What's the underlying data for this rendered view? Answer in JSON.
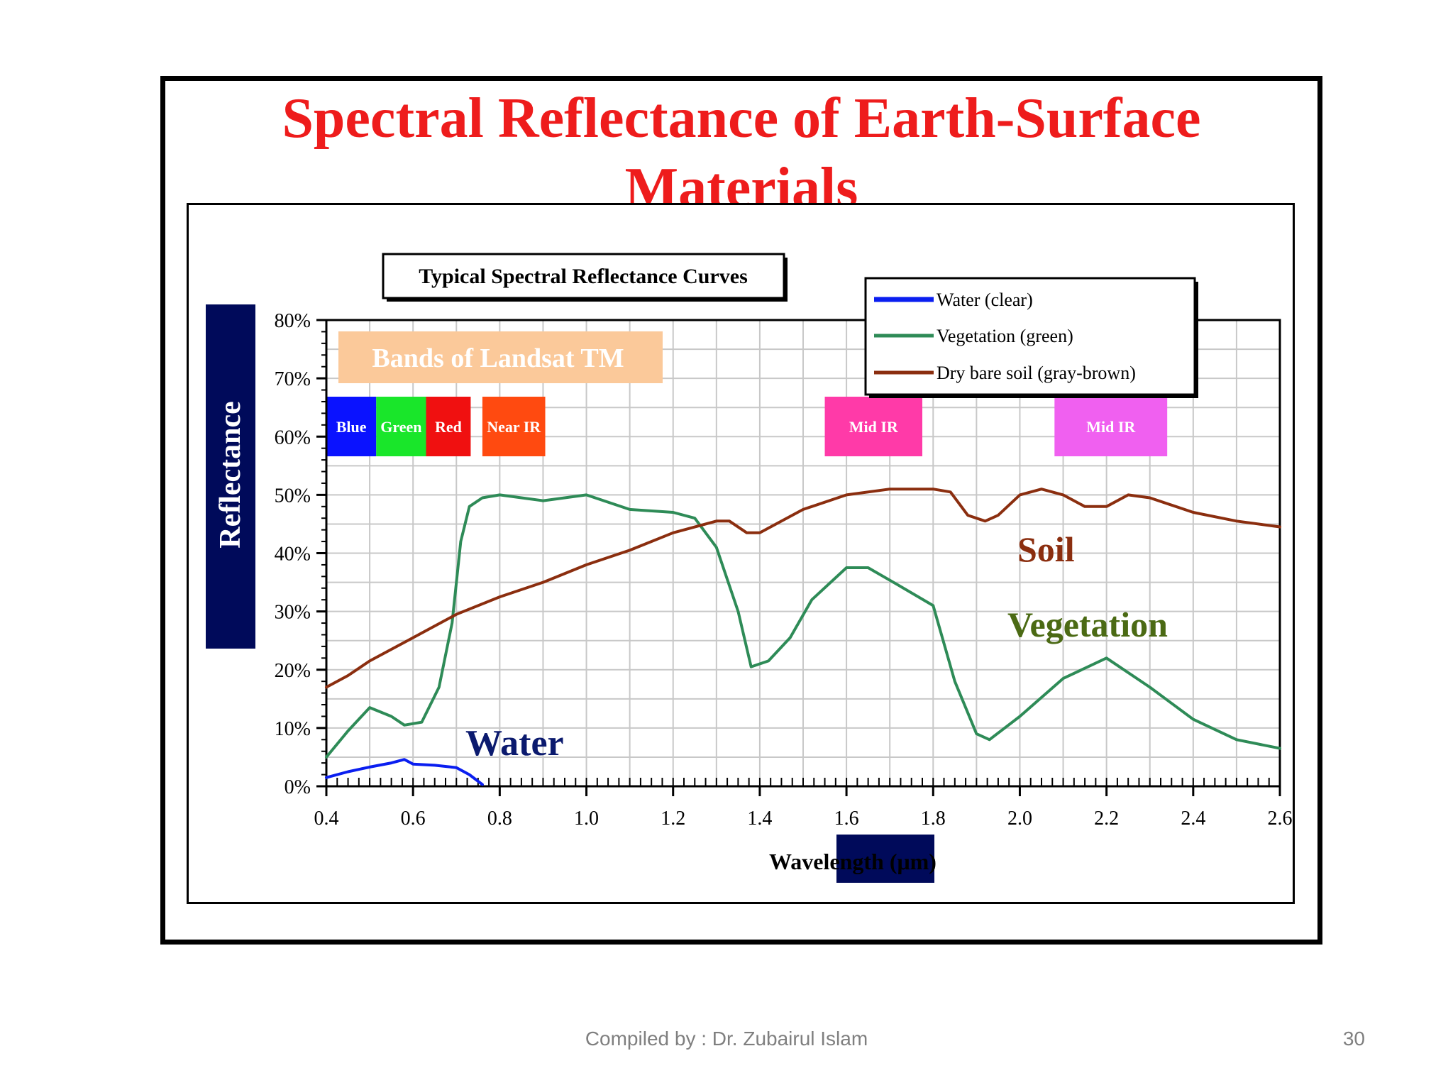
{
  "slide": {
    "title_line1": "Spectral Reflectance of Earth-Surface",
    "title_line2": "Materials",
    "footer": "Compiled by : Dr. Zubairul Islam",
    "page_number": "30"
  },
  "colors": {
    "title": "#ee1c1c",
    "water": "#0a1ef0",
    "vegetation": "#2e8b57",
    "soil": "#8b2e0f",
    "navy": "#000a5a"
  },
  "chart_data": {
    "type": "line",
    "inner_title": "Typical Spectral Reflectance Curves",
    "xlabel": "Wavelength (μm)",
    "ylabel": "Reflectance",
    "xlim": [
      0.4,
      2.6
    ],
    "ylim": [
      0,
      80
    ],
    "xticks": [
      "0.4",
      "0.6",
      "0.8",
      "1.0",
      "1.2",
      "1.4",
      "1.6",
      "1.8",
      "2.0",
      "2.2",
      "2.4",
      "2.6"
    ],
    "yticks": [
      "0%",
      "10%",
      "20%",
      "30%",
      "40%",
      "50%",
      "60%",
      "70%",
      "80%"
    ],
    "grid": true,
    "legend": "top-right",
    "series": [
      {
        "name": "Water (clear)",
        "key": "water",
        "x": [
          0.4,
          0.45,
          0.5,
          0.55,
          0.58,
          0.6,
          0.65,
          0.7,
          0.73,
          0.76
        ],
        "y": [
          1.5,
          2.5,
          3.3,
          4.0,
          4.6,
          3.8,
          3.6,
          3.2,
          2.0,
          0.3
        ]
      },
      {
        "name": "Vegetation (green)",
        "key": "vegetation",
        "x": [
          0.4,
          0.45,
          0.5,
          0.55,
          0.58,
          0.62,
          0.66,
          0.69,
          0.71,
          0.73,
          0.76,
          0.8,
          0.9,
          1.0,
          1.1,
          1.2,
          1.25,
          1.3,
          1.35,
          1.38,
          1.42,
          1.47,
          1.52,
          1.6,
          1.65,
          1.72,
          1.8,
          1.85,
          1.9,
          1.93,
          2.0,
          2.1,
          2.2,
          2.3,
          2.4,
          2.5,
          2.6
        ],
        "y": [
          5.0,
          9.5,
          13.5,
          12.0,
          10.5,
          11.0,
          17.0,
          28.0,
          42.0,
          48.0,
          49.5,
          50.0,
          49.0,
          50.0,
          47.5,
          47.0,
          46.0,
          41.0,
          30.0,
          20.5,
          21.5,
          25.5,
          32.0,
          37.5,
          37.5,
          34.5,
          31.0,
          18.0,
          9.0,
          8.0,
          12.0,
          18.5,
          22.0,
          17.0,
          11.5,
          8.0,
          6.5
        ]
      },
      {
        "name": "Dry bare soil (gray-brown)",
        "key": "soil",
        "x": [
          0.4,
          0.45,
          0.5,
          0.6,
          0.7,
          0.8,
          0.9,
          1.0,
          1.1,
          1.2,
          1.3,
          1.33,
          1.37,
          1.4,
          1.5,
          1.6,
          1.7,
          1.8,
          1.84,
          1.88,
          1.92,
          1.95,
          2.0,
          2.05,
          2.1,
          2.15,
          2.2,
          2.25,
          2.3,
          2.4,
          2.5,
          2.6
        ],
        "y": [
          17.0,
          19.0,
          21.5,
          25.5,
          29.5,
          32.5,
          35.0,
          38.0,
          40.5,
          43.5,
          45.5,
          45.5,
          43.5,
          43.5,
          47.5,
          50.0,
          51.0,
          51.0,
          50.5,
          46.5,
          45.5,
          46.5,
          50.0,
          51.0,
          50.0,
          48.0,
          48.0,
          50.0,
          49.5,
          47.0,
          45.5,
          44.5
        ]
      }
    ],
    "annotations": {
      "water": "Water",
      "soil": "Soil",
      "vegetation": "Vegetation"
    },
    "bands": {
      "heading": "Bands of Landsat TM",
      "items": [
        {
          "label": "Blue",
          "x0": 0.4,
          "x1": 0.515,
          "color": "#0a12ff"
        },
        {
          "label": "Green",
          "x0": 0.515,
          "x1": 0.63,
          "color": "#19e62a"
        },
        {
          "label": "Red",
          "x0": 0.63,
          "x1": 0.733,
          "color": "#f01010"
        },
        {
          "label": "Near IR",
          "x0": 0.76,
          "x1": 0.905,
          "color": "#ff4a10"
        },
        {
          "label": "Mid IR",
          "x0": 1.55,
          "x1": 1.775,
          "color": "#ff3aa8"
        },
        {
          "label": "Mid IR",
          "x0": 2.08,
          "x1": 2.34,
          "color": "#f060f0"
        }
      ]
    }
  }
}
